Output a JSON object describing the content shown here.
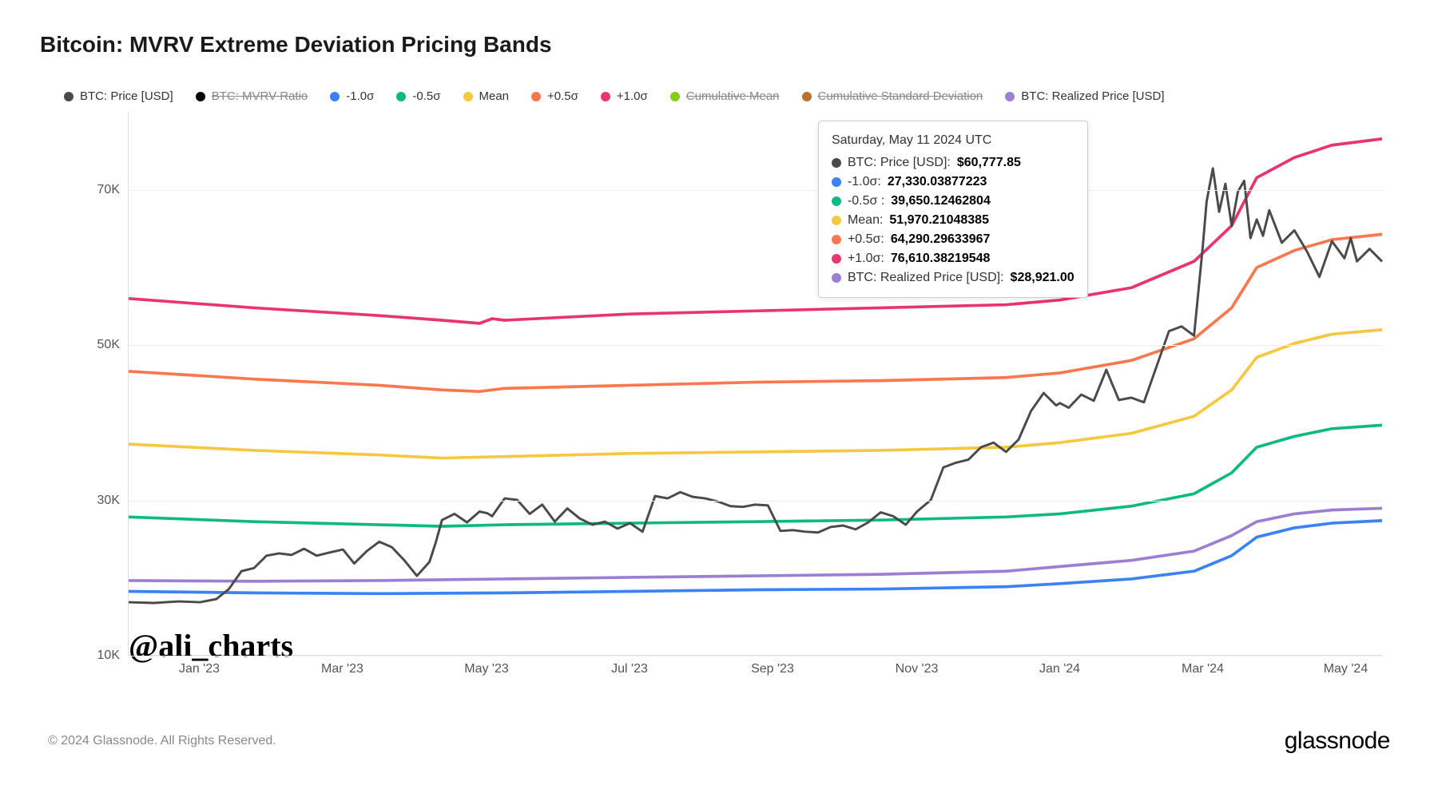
{
  "title": "Bitcoin: MVRV Extreme Deviation Pricing Bands",
  "chart": {
    "type": "line",
    "background_color": "#ffffff",
    "grid_color": "#eeeeee",
    "axis_color": "#dddddd",
    "label_fontsize": 16,
    "title_fontsize": 28,
    "ylim": [
      10000,
      80000
    ],
    "y_ticks": [
      10000,
      30000,
      50000,
      70000
    ],
    "y_tick_labels": [
      "10K",
      "30K",
      "50K",
      "70K"
    ],
    "x_ticks": [
      0.057,
      0.171,
      0.286,
      0.4,
      0.514,
      0.629,
      0.743,
      0.857,
      0.971
    ],
    "x_tick_labels": [
      "Jan '23",
      "Mar '23",
      "May '23",
      "Jul '23",
      "Sep '23",
      "Nov '23",
      "Jan '24",
      "Mar '24",
      "May '24"
    ],
    "x_domain_months": 17.5,
    "x_start": "Dec 2022",
    "legend": [
      {
        "label": "BTC: Price [USD]",
        "color": "#4a4a4a",
        "strike": false
      },
      {
        "label": "BTC: MVRV Ratio",
        "color": "#000000",
        "strike": true
      },
      {
        "label": "-1.0σ",
        "color": "#3b82f6",
        "strike": false
      },
      {
        "label": "-0.5σ",
        "color": "#10b981",
        "strike": false
      },
      {
        "label": "Mean",
        "color": "#f5c842",
        "strike": false
      },
      {
        "label": "+0.5σ",
        "color": "#f97850",
        "strike": false
      },
      {
        "label": "+1.0σ",
        "color": "#e8356f",
        "strike": false
      },
      {
        "label": "Cumulative Mean",
        "color": "#84cc16",
        "strike": true
      },
      {
        "label": "Cumulative Standard Deviation",
        "color": "#b8732e",
        "strike": true
      },
      {
        "label": "BTC: Realized Price [USD]",
        "color": "#9b7fd4",
        "strike": false
      }
    ],
    "series": {
      "btc_price": {
        "color": "#4a4a4a",
        "width": 2,
        "data": [
          [
            0.0,
            16800
          ],
          [
            0.02,
            16700
          ],
          [
            0.04,
            16900
          ],
          [
            0.057,
            16800
          ],
          [
            0.07,
            17200
          ],
          [
            0.08,
            18500
          ],
          [
            0.09,
            20800
          ],
          [
            0.1,
            21200
          ],
          [
            0.11,
            22800
          ],
          [
            0.12,
            23100
          ],
          [
            0.13,
            22900
          ],
          [
            0.14,
            23700
          ],
          [
            0.15,
            22800
          ],
          [
            0.16,
            23200
          ],
          [
            0.171,
            23600
          ],
          [
            0.18,
            21800
          ],
          [
            0.19,
            23400
          ],
          [
            0.2,
            24600
          ],
          [
            0.21,
            23900
          ],
          [
            0.22,
            22200
          ],
          [
            0.23,
            20200
          ],
          [
            0.24,
            22000
          ],
          [
            0.245,
            24500
          ],
          [
            0.25,
            27400
          ],
          [
            0.26,
            28200
          ],
          [
            0.27,
            27100
          ],
          [
            0.28,
            28500
          ],
          [
            0.286,
            28300
          ],
          [
            0.29,
            27900
          ],
          [
            0.3,
            30200
          ],
          [
            0.31,
            30000
          ],
          [
            0.32,
            28200
          ],
          [
            0.33,
            29400
          ],
          [
            0.34,
            27200
          ],
          [
            0.35,
            28900
          ],
          [
            0.36,
            27600
          ],
          [
            0.37,
            26800
          ],
          [
            0.38,
            27200
          ],
          [
            0.39,
            26300
          ],
          [
            0.4,
            27000
          ],
          [
            0.41,
            25900
          ],
          [
            0.42,
            30500
          ],
          [
            0.43,
            30200
          ],
          [
            0.44,
            31000
          ],
          [
            0.45,
            30400
          ],
          [
            0.46,
            30200
          ],
          [
            0.47,
            29800
          ],
          [
            0.48,
            29200
          ],
          [
            0.49,
            29100
          ],
          [
            0.5,
            29400
          ],
          [
            0.51,
            29300
          ],
          [
            0.52,
            26000
          ],
          [
            0.53,
            26100
          ],
          [
            0.54,
            25900
          ],
          [
            0.55,
            25800
          ],
          [
            0.56,
            26500
          ],
          [
            0.57,
            26700
          ],
          [
            0.58,
            26200
          ],
          [
            0.59,
            27100
          ],
          [
            0.6,
            28400
          ],
          [
            0.61,
            27900
          ],
          [
            0.62,
            26800
          ],
          [
            0.629,
            28500
          ],
          [
            0.64,
            30000
          ],
          [
            0.65,
            34200
          ],
          [
            0.66,
            34800
          ],
          [
            0.67,
            35200
          ],
          [
            0.68,
            36800
          ],
          [
            0.69,
            37400
          ],
          [
            0.7,
            36200
          ],
          [
            0.71,
            37800
          ],
          [
            0.72,
            41500
          ],
          [
            0.73,
            43800
          ],
          [
            0.74,
            42200
          ],
          [
            0.743,
            42500
          ],
          [
            0.75,
            41900
          ],
          [
            0.76,
            43600
          ],
          [
            0.77,
            42800
          ],
          [
            0.78,
            46800
          ],
          [
            0.79,
            42900
          ],
          [
            0.8,
            43200
          ],
          [
            0.81,
            42600
          ],
          [
            0.82,
            47200
          ],
          [
            0.83,
            51800
          ],
          [
            0.84,
            52400
          ],
          [
            0.85,
            51200
          ],
          [
            0.857,
            62800
          ],
          [
            0.86,
            68500
          ],
          [
            0.865,
            72800
          ],
          [
            0.87,
            67200
          ],
          [
            0.875,
            70800
          ],
          [
            0.88,
            65400
          ],
          [
            0.885,
            69800
          ],
          [
            0.89,
            71200
          ],
          [
            0.895,
            63800
          ],
          [
            0.9,
            66200
          ],
          [
            0.905,
            64100
          ],
          [
            0.91,
            67400
          ],
          [
            0.92,
            63200
          ],
          [
            0.93,
            64800
          ],
          [
            0.94,
            62100
          ],
          [
            0.95,
            58800
          ],
          [
            0.96,
            63400
          ],
          [
            0.97,
            61200
          ],
          [
            0.975,
            63800
          ],
          [
            0.98,
            60800
          ],
          [
            0.99,
            62400
          ],
          [
            1.0,
            60778
          ]
        ]
      },
      "minus_1_sigma": {
        "color": "#3b82f6",
        "width": 2.5,
        "data": [
          [
            0.0,
            18200
          ],
          [
            0.1,
            18000
          ],
          [
            0.2,
            17900
          ],
          [
            0.3,
            18000
          ],
          [
            0.4,
            18200
          ],
          [
            0.5,
            18400
          ],
          [
            0.6,
            18500
          ],
          [
            0.7,
            18800
          ],
          [
            0.743,
            19200
          ],
          [
            0.8,
            19800
          ],
          [
            0.85,
            20800
          ],
          [
            0.88,
            22800
          ],
          [
            0.9,
            25200
          ],
          [
            0.93,
            26400
          ],
          [
            0.96,
            27000
          ],
          [
            1.0,
            27330
          ]
        ]
      },
      "minus_05_sigma": {
        "color": "#10b981",
        "width": 2.5,
        "data": [
          [
            0.0,
            27800
          ],
          [
            0.1,
            27200
          ],
          [
            0.2,
            26800
          ],
          [
            0.25,
            26600
          ],
          [
            0.3,
            26800
          ],
          [
            0.4,
            27000
          ],
          [
            0.5,
            27200
          ],
          [
            0.6,
            27400
          ],
          [
            0.7,
            27800
          ],
          [
            0.743,
            28200
          ],
          [
            0.8,
            29200
          ],
          [
            0.85,
            30800
          ],
          [
            0.88,
            33500
          ],
          [
            0.9,
            36800
          ],
          [
            0.93,
            38200
          ],
          [
            0.96,
            39200
          ],
          [
            1.0,
            39650
          ]
        ]
      },
      "mean": {
        "color": "#f5c842",
        "width": 2.5,
        "data": [
          [
            0.0,
            37200
          ],
          [
            0.1,
            36400
          ],
          [
            0.2,
            35800
          ],
          [
            0.25,
            35400
          ],
          [
            0.3,
            35600
          ],
          [
            0.4,
            36000
          ],
          [
            0.5,
            36200
          ],
          [
            0.6,
            36400
          ],
          [
            0.7,
            36800
          ],
          [
            0.743,
            37400
          ],
          [
            0.8,
            38600
          ],
          [
            0.85,
            40800
          ],
          [
            0.88,
            44200
          ],
          [
            0.9,
            48400
          ],
          [
            0.93,
            50200
          ],
          [
            0.96,
            51400
          ],
          [
            1.0,
            51970
          ]
        ]
      },
      "plus_05_sigma": {
        "color": "#f97850",
        "width": 2.5,
        "data": [
          [
            0.0,
            46600
          ],
          [
            0.1,
            45600
          ],
          [
            0.2,
            44800
          ],
          [
            0.25,
            44200
          ],
          [
            0.28,
            44000
          ],
          [
            0.3,
            44400
          ],
          [
            0.4,
            44800
          ],
          [
            0.5,
            45200
          ],
          [
            0.6,
            45400
          ],
          [
            0.7,
            45800
          ],
          [
            0.743,
            46400
          ],
          [
            0.8,
            48000
          ],
          [
            0.85,
            50800
          ],
          [
            0.88,
            54800
          ],
          [
            0.9,
            60000
          ],
          [
            0.93,
            62200
          ],
          [
            0.96,
            63600
          ],
          [
            1.0,
            64290
          ]
        ]
      },
      "plus_1_sigma": {
        "color": "#e8356f",
        "width": 2.5,
        "data": [
          [
            0.0,
            56000
          ],
          [
            0.1,
            54800
          ],
          [
            0.2,
            53800
          ],
          [
            0.25,
            53200
          ],
          [
            0.28,
            52800
          ],
          [
            0.29,
            53400
          ],
          [
            0.3,
            53200
          ],
          [
            0.4,
            54000
          ],
          [
            0.5,
            54400
          ],
          [
            0.6,
            54800
          ],
          [
            0.7,
            55200
          ],
          [
            0.743,
            55800
          ],
          [
            0.8,
            57400
          ],
          [
            0.85,
            60800
          ],
          [
            0.88,
            65400
          ],
          [
            0.9,
            71600
          ],
          [
            0.93,
            74200
          ],
          [
            0.96,
            75800
          ],
          [
            1.0,
            76610
          ]
        ]
      },
      "realized_price": {
        "color": "#9b7fd4",
        "width": 2.5,
        "data": [
          [
            0.0,
            19600
          ],
          [
            0.1,
            19500
          ],
          [
            0.2,
            19600
          ],
          [
            0.3,
            19800
          ],
          [
            0.4,
            20000
          ],
          [
            0.5,
            20200
          ],
          [
            0.6,
            20400
          ],
          [
            0.7,
            20800
          ],
          [
            0.743,
            21400
          ],
          [
            0.8,
            22200
          ],
          [
            0.85,
            23400
          ],
          [
            0.88,
            25400
          ],
          [
            0.9,
            27200
          ],
          [
            0.93,
            28200
          ],
          [
            0.96,
            28700
          ],
          [
            1.0,
            28921
          ]
        ]
      }
    }
  },
  "tooltip": {
    "title": "Saturday, May 11 2024 UTC",
    "rows": [
      {
        "color": "#4a4a4a",
        "label": "BTC: Price [USD]:",
        "value": "$60,777.85"
      },
      {
        "color": "#3b82f6",
        "label": "-1.0σ:",
        "value": "27,330.03877223"
      },
      {
        "color": "#10b981",
        "label": "-0.5σ :",
        "value": "39,650.12462804"
      },
      {
        "color": "#f5c842",
        "label": "Mean:",
        "value": "51,970.21048385"
      },
      {
        "color": "#f97850",
        "label": "+0.5σ:",
        "value": "64,290.29633967"
      },
      {
        "color": "#e8356f",
        "label": "+1.0σ:",
        "value": "76,610.38219548"
      },
      {
        "color": "#9b7fd4",
        "label": "BTC: Realized Price [USD]:",
        "value": "$28,921.00"
      }
    ]
  },
  "watermark": "@ali_charts",
  "footer": {
    "copyright": "© 2024 Glassnode. All Rights Reserved.",
    "brand": "glassnode"
  }
}
